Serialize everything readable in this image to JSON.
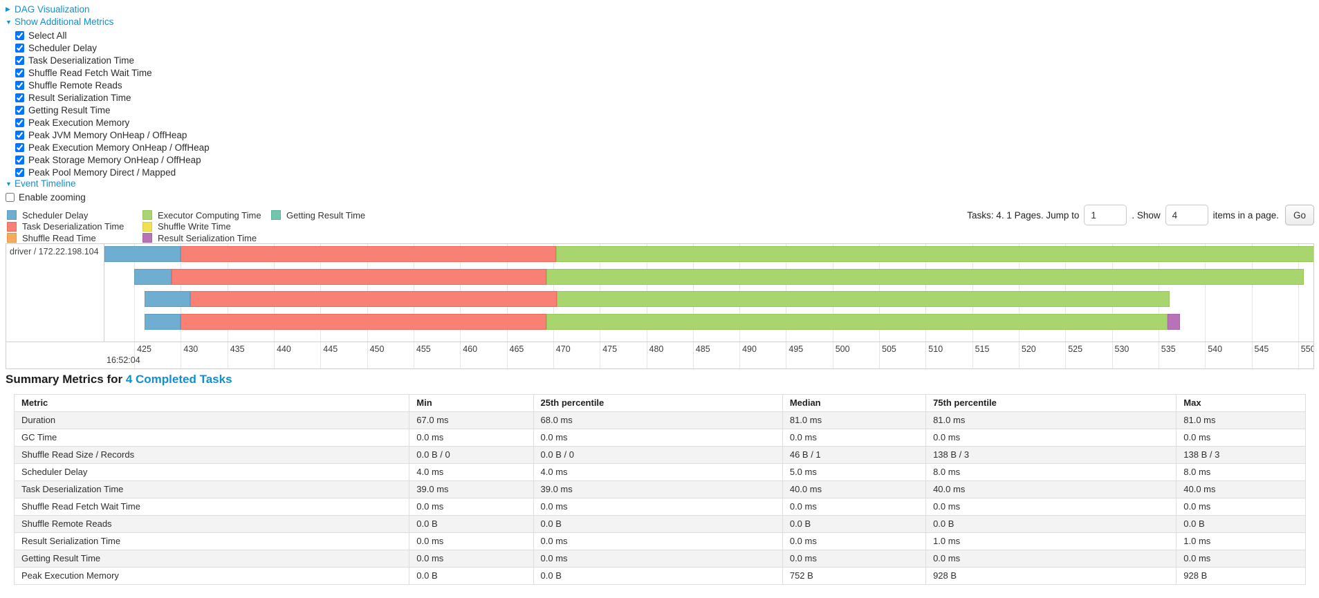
{
  "tree": {
    "dag_label": "DAG Visualization",
    "metrics_label": "Show Additional Metrics",
    "event_timeline_label": "Event Timeline",
    "enable_zooming_label": "Enable zooming",
    "checkboxes": [
      {
        "label": "Select All",
        "checked": true
      },
      {
        "label": "Scheduler Delay",
        "checked": true
      },
      {
        "label": "Task Deserialization Time",
        "checked": true
      },
      {
        "label": "Shuffle Read Fetch Wait Time",
        "checked": true
      },
      {
        "label": "Shuffle Remote Reads",
        "checked": true
      },
      {
        "label": "Result Serialization Time",
        "checked": true
      },
      {
        "label": "Getting Result Time",
        "checked": true
      },
      {
        "label": "Peak Execution Memory",
        "checked": true
      },
      {
        "label": "Peak JVM Memory OnHeap / OffHeap",
        "checked": true
      },
      {
        "label": "Peak Execution Memory OnHeap / OffHeap",
        "checked": true
      },
      {
        "label": "Peak Storage Memory OnHeap / OffHeap",
        "checked": true
      },
      {
        "label": "Peak Pool Memory Direct / Mapped",
        "checked": true
      }
    ]
  },
  "legend": {
    "columns": [
      [
        "scheduler_delay",
        "task_deserialization",
        "shuffle_read"
      ],
      [
        "executor_computing",
        "shuffle_write",
        "result_serialization"
      ],
      [
        "getting_result"
      ]
    ]
  },
  "pagination": {
    "prefix": "Tasks: 4. 1 Pages. Jump to",
    "jump_value": "1",
    "show_text": ". Show",
    "show_value": "4",
    "suffix": "items in a page.",
    "go_label": "Go"
  },
  "chart_data": {
    "type": "timeline",
    "row_label": "driver / 172.22.198.104",
    "axis": {
      "min": 421.8,
      "max": 551.8,
      "tick_start": 425,
      "tick_end": 550,
      "tick_step": 5,
      "time_label": "16:52:04"
    },
    "series_colors": {
      "scheduler_delay": {
        "label": "Scheduler Delay",
        "fill": "#6FADD1",
        "border": "#5E9EC4"
      },
      "task_deserialization": {
        "label": "Task Deserialization Time",
        "fill": "#F98074",
        "border": "#EA6B5E"
      },
      "shuffle_read": {
        "label": "Shuffle Read Time",
        "fill": "#F9A95C",
        "border": "#E8944A"
      },
      "executor_computing": {
        "label": "Executor Computing Time",
        "fill": "#A8D56E",
        "border": "#97C65A"
      },
      "shuffle_write": {
        "label": "Shuffle Write Time",
        "fill": "#F0E054",
        "border": "#DCCB44"
      },
      "result_serialization": {
        "label": "Result Serialization Time",
        "fill": "#B873B8",
        "border": "#A763A7"
      },
      "getting_result": {
        "label": "Getting Result Time",
        "fill": "#72C6B0",
        "border": "#5DB09A"
      }
    },
    "tasks": [
      {
        "segments": [
          {
            "key": "scheduler_delay",
            "start": 421.8,
            "end": 430.0
          },
          {
            "key": "task_deserialization",
            "start": 430.0,
            "end": 470.3
          },
          {
            "key": "executor_computing",
            "start": 470.3,
            "end": 551.8
          }
        ]
      },
      {
        "segments": [
          {
            "key": "scheduler_delay",
            "start": 425.0,
            "end": 429.0
          },
          {
            "key": "task_deserialization",
            "start": 429.0,
            "end": 469.3
          },
          {
            "key": "executor_computing",
            "start": 469.3,
            "end": 550.6
          }
        ]
      },
      {
        "segments": [
          {
            "key": "scheduler_delay",
            "start": 426.1,
            "end": 431.0
          },
          {
            "key": "task_deserialization",
            "start": 431.0,
            "end": 470.4
          },
          {
            "key": "executor_computing",
            "start": 470.4,
            "end": 536.2
          }
        ]
      },
      {
        "segments": [
          {
            "key": "scheduler_delay",
            "start": 426.1,
            "end": 430.0
          },
          {
            "key": "task_deserialization",
            "start": 430.0,
            "end": 469.3
          },
          {
            "key": "executor_computing",
            "start": 469.3,
            "end": 536.0
          },
          {
            "key": "result_serialization",
            "start": 536.0,
            "end": 537.3
          }
        ]
      }
    ]
  },
  "summary": {
    "title_prefix": "Summary Metrics for ",
    "title_link": "4 Completed Tasks",
    "table": {
      "headers": [
        "Metric",
        "Min",
        "25th percentile",
        "Median",
        "75th percentile",
        "Max"
      ],
      "col_widths_pct": [
        30.6,
        9.6,
        19.3,
        11.1,
        19.4,
        10.0
      ],
      "rows": [
        [
          "Duration",
          "67.0 ms",
          "68.0 ms",
          "81.0 ms",
          "81.0 ms",
          "81.0 ms"
        ],
        [
          "GC Time",
          "0.0 ms",
          "0.0 ms",
          "0.0 ms",
          "0.0 ms",
          "0.0 ms"
        ],
        [
          "Shuffle Read Size / Records",
          "0.0 B / 0",
          "0.0 B / 0",
          "46 B / 1",
          "138 B / 3",
          "138 B / 3"
        ],
        [
          "Scheduler Delay",
          "4.0 ms",
          "4.0 ms",
          "5.0 ms",
          "8.0 ms",
          "8.0 ms"
        ],
        [
          "Task Deserialization Time",
          "39.0 ms",
          "39.0 ms",
          "40.0 ms",
          "40.0 ms",
          "40.0 ms"
        ],
        [
          "Shuffle Read Fetch Wait Time",
          "0.0 ms",
          "0.0 ms",
          "0.0 ms",
          "0.0 ms",
          "0.0 ms"
        ],
        [
          "Shuffle Remote Reads",
          "0.0 B",
          "0.0 B",
          "0.0 B",
          "0.0 B",
          "0.0 B"
        ],
        [
          "Result Serialization Time",
          "0.0 ms",
          "0.0 ms",
          "0.0 ms",
          "1.0 ms",
          "1.0 ms"
        ],
        [
          "Getting Result Time",
          "0.0 ms",
          "0.0 ms",
          "0.0 ms",
          "0.0 ms",
          "0.0 ms"
        ],
        [
          "Peak Execution Memory",
          "0.0 B",
          "0.0 B",
          "752 B",
          "928 B",
          "928 B"
        ]
      ]
    }
  }
}
